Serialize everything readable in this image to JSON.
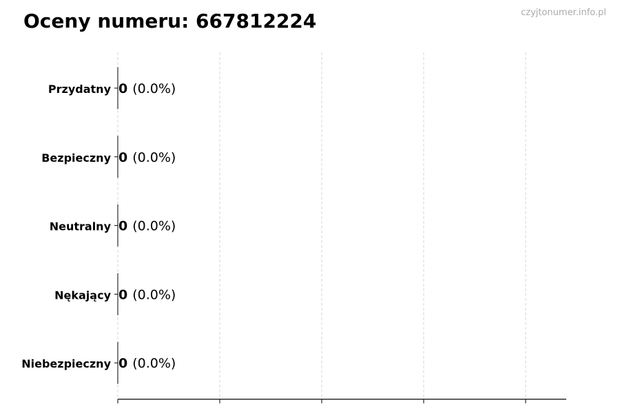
{
  "chart_data": {
    "type": "bar",
    "orientation": "horizontal",
    "title": "Oceny numeru: 667812224",
    "watermark": "czyjtonumer.info.pl",
    "categories": [
      "Przydatny",
      "Bezpieczny",
      "Neutralny",
      "Nękający",
      "Niebezpieczny"
    ],
    "values": [
      0,
      0,
      0,
      0,
      0
    ],
    "data_labels": [
      {
        "count": "0",
        "percent": "(0.0%)"
      },
      {
        "count": "0",
        "percent": "(0.0%)"
      },
      {
        "count": "0",
        "percent": "(0.0%)"
      },
      {
        "count": "0",
        "percent": "(0.0%)"
      },
      {
        "count": "0",
        "percent": "(0.0%)"
      }
    ],
    "xlabel": "",
    "ylabel": "",
    "grid": "vertical dashed",
    "x_tick_labels_shown": false,
    "colors": {
      "bar_edge": "#000000",
      "grid": "#cccccc",
      "watermark": "#aaaaaa"
    }
  }
}
